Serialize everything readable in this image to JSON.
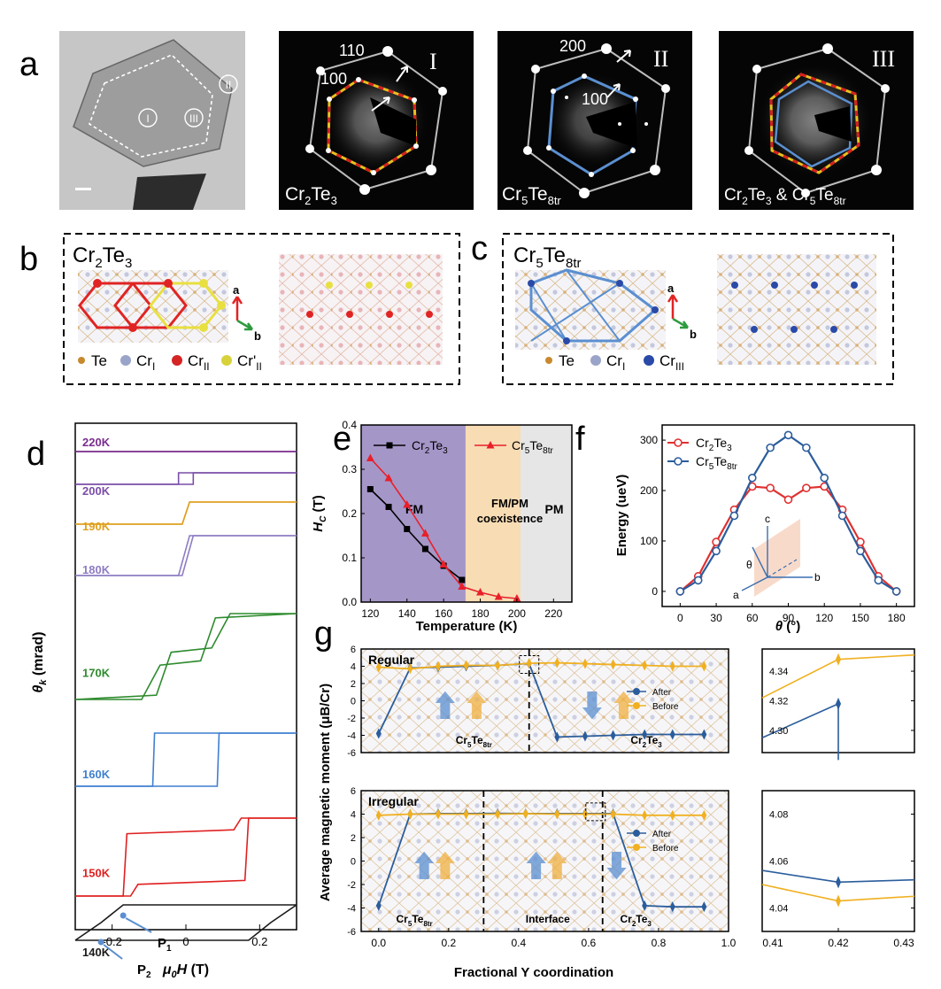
{
  "panels": {
    "a": "a",
    "b": "b",
    "c": "c",
    "d": "d",
    "e": "e",
    "f": "f",
    "g": "g"
  },
  "panel_a": {
    "regions": [
      "I",
      "II",
      "III"
    ],
    "images": [
      {
        "roman": "I",
        "formula_parts": [
          "Cr",
          "2",
          "Te",
          "3"
        ],
        "index_labels": [
          "110",
          "100"
        ]
      },
      {
        "roman": "II",
        "formula_parts": [
          "Cr",
          "5",
          "Te",
          "8tr"
        ],
        "index_labels": [
          "200",
          "100"
        ]
      },
      {
        "roman": "III",
        "formula_parts": [
          "Cr",
          "2",
          "Te",
          "3",
          " & Cr",
          "5",
          "Te",
          "8tr"
        ]
      }
    ],
    "colors": {
      "cr2te3_hex": "#e8c020",
      "cr2te3_dash": "#d42020",
      "cr5te8_hex": "#5b8fd0",
      "outer_hex": "#b9b9b9"
    }
  },
  "panel_b": {
    "title_parts": [
      "Cr",
      "2",
      "Te",
      "3"
    ],
    "axes": {
      "a": "a",
      "b": "b"
    },
    "legend": [
      {
        "text": "Te",
        "color": "#c8892e"
      },
      {
        "text": "Cr",
        "sub": "I",
        "color": "#9aa4c8"
      },
      {
        "text": "Cr",
        "sub": "II",
        "color": "#d42424"
      },
      {
        "text": "Cr'",
        "sub": "II",
        "color": "#d7d23a"
      }
    ]
  },
  "panel_c": {
    "title_parts": [
      "Cr",
      "5",
      "Te",
      "8tr"
    ],
    "axes": {
      "a": "a",
      "b": "b"
    },
    "legend": [
      {
        "text": "Te",
        "color": "#c8892e"
      },
      {
        "text": "Cr",
        "sub": "I",
        "color": "#9aa4c8"
      },
      {
        "text": "Cr",
        "sub": "III",
        "color": "#2a4aa8"
      }
    ]
  },
  "chart_data": [
    {
      "panel": "d",
      "type": "line",
      "xlabel": "μ0H (T)",
      "ylabel": "θk (mrad)",
      "xlim": [
        -0.3,
        0.3
      ],
      "xticks": [
        "-0.2",
        "0",
        "0.2"
      ],
      "curves": [
        {
          "name": "220K",
          "color": "#7b2d8e",
          "x": [
            -0.3,
            0.3
          ],
          "y": [
            0,
            0
          ]
        },
        {
          "name": "200K",
          "color": "#7b4ea8",
          "x": [
            -0.3,
            -0.02,
            -0.02,
            0.3
          ],
          "y": [
            0,
            0,
            1,
            1
          ]
        },
        {
          "name": "190K",
          "color": "#e0a020",
          "x": [
            -0.3,
            -0.01,
            0.01,
            0.3
          ],
          "y": [
            0,
            0,
            1,
            1
          ]
        },
        {
          "name": "180K",
          "color": "#8e7cc3",
          "x": [
            -0.3,
            -0.01,
            0.02,
            0.3
          ],
          "y": [
            0,
            0,
            1,
            1
          ]
        },
        {
          "name": "170K",
          "color": "#2e8b2e",
          "x": [
            -0.3,
            -0.08,
            -0.04,
            0.07,
            0.12,
            0.3
          ],
          "y": [
            0,
            0.05,
            0.55,
            0.6,
            1,
            1
          ]
        },
        {
          "name": "160K",
          "color": "#3f7fd0",
          "x": [
            -0.3,
            -0.09,
            -0.085,
            0.07,
            0.08,
            0.3
          ],
          "y": [
            0,
            0,
            1,
            1,
            1,
            1
          ]
        },
        {
          "name": "150K",
          "color": "#e02020",
          "x": [
            -0.3,
            -0.17,
            -0.16,
            0.13,
            0.15,
            0.3
          ],
          "y": [
            0,
            0,
            0.8,
            0.85,
            1,
            1
          ]
        },
        {
          "name": "140K",
          "color": "#1a1a1a",
          "x": [
            -0.3,
            -0.23,
            -0.17,
            0.17,
            0.24,
            0.3
          ],
          "y": [
            0,
            0.5,
            1,
            1,
            1,
            1
          ]
        }
      ],
      "annotations": [
        {
          "text": "P",
          "sub": "1",
          "x": -0.17
        },
        {
          "text": "P",
          "sub": "2",
          "x": -0.23
        }
      ]
    },
    {
      "panel": "e",
      "type": "line",
      "xlabel": "Temperature (K)",
      "ylabel_parts": [
        "H",
        "C",
        " (T)"
      ],
      "xlim": [
        115,
        230
      ],
      "ylim": [
        0,
        0.4
      ],
      "xticks": [
        120,
        140,
        160,
        180,
        200,
        220
      ],
      "yticks": [
        "0.0",
        "0.1",
        "0.2",
        "0.3",
        "0.4"
      ],
      "regions": [
        {
          "label": "FM",
          "from": 115,
          "to": 172,
          "color": "#a596c8"
        },
        {
          "label": "FM/PM coexistence",
          "from": 172,
          "to": 202,
          "color": "#f8dcb4"
        },
        {
          "label": "PM",
          "from": 202,
          "to": 230,
          "color": "#e6e6e6"
        }
      ],
      "series": [
        {
          "name_parts": [
            "Cr",
            "2",
            "Te",
            "3"
          ],
          "color": "#000000",
          "marker": "square",
          "x": [
            120,
            130,
            140,
            150,
            160,
            170
          ],
          "y": [
            0.255,
            0.215,
            0.165,
            0.12,
            0.082,
            0.05
          ]
        },
        {
          "name_parts": [
            "Cr",
            "5",
            "Te",
            "8tr"
          ],
          "color": "#e8202a",
          "marker": "triangle",
          "x": [
            120,
            130,
            140,
            150,
            160,
            170,
            180,
            190,
            200
          ],
          "y": [
            0.325,
            0.28,
            0.22,
            0.155,
            0.085,
            0.035,
            0.022,
            0.012,
            0.008
          ]
        }
      ]
    },
    {
      "panel": "f",
      "type": "line",
      "xlabel": "θ (°)",
      "ylabel": "Energy (ueV)",
      "xlim": [
        -15,
        195
      ],
      "ylim": [
        -30,
        330
      ],
      "xticks": [
        0,
        30,
        60,
        90,
        120,
        150,
        180
      ],
      "yticks": [
        0,
        100,
        200,
        300
      ],
      "inset_labels": [
        "c",
        "b",
        "a",
        "θ"
      ],
      "series": [
        {
          "name_parts": [
            "Cr",
            "2",
            "Te",
            "3"
          ],
          "color": "#e03030",
          "x": [
            0,
            15,
            30,
            45,
            60,
            75,
            90,
            105,
            120,
            135,
            150,
            165,
            180
          ],
          "y": [
            0,
            30,
            98,
            162,
            208,
            205,
            182,
            205,
            208,
            162,
            98,
            30,
            0
          ]
        },
        {
          "name_parts": [
            "Cr",
            "5",
            "Te",
            "8tr"
          ],
          "color": "#2b5d9c",
          "x": [
            0,
            15,
            30,
            45,
            60,
            75,
            90,
            105,
            120,
            135,
            150,
            165,
            180
          ],
          "y": [
            0,
            22,
            80,
            150,
            225,
            285,
            310,
            285,
            225,
            150,
            80,
            22,
            0
          ]
        }
      ]
    },
    {
      "panel": "g",
      "type": "line",
      "xlabel": "Fractional Y coordination",
      "ylabel": "Average magnetic moment (μB/Cr)",
      "xlim": [
        -0.05,
        1.0
      ],
      "xticks": [
        "0.0",
        "0.2",
        "0.4",
        "0.6",
        "0.8",
        "1.0"
      ],
      "ylim": [
        -6,
        6
      ],
      "yticks": [
        -6,
        -4,
        -2,
        0,
        2,
        4,
        6
      ],
      "subpanels": [
        {
          "tag": "Regular",
          "regions": [
            {
              "parts": [
                "Cr",
                "5",
                "Te",
                "8tr"
              ],
              "x": 0.22
            },
            {
              "parts": [
                "Cr",
                "2",
                "Te",
                "3"
              ],
              "x": 0.72
            }
          ],
          "dividers": [
            0.43
          ],
          "series": [
            {
              "name": "After",
              "color": "#2b5d9c",
              "x": [
                0.0,
                0.09,
                0.17,
                0.25,
                0.34,
                0.43,
                0.51,
                0.59,
                0.67,
                0.76,
                0.84,
                0.93
              ],
              "y": [
                -3.8,
                3.8,
                3.9,
                4.0,
                4.1,
                4.32,
                -4.2,
                -4.1,
                -4.0,
                -3.9,
                -3.9,
                -3.9
              ]
            },
            {
              "name": "Before",
              "color": "#f0b020",
              "x": [
                0.0,
                0.09,
                0.17,
                0.25,
                0.34,
                0.43,
                0.51,
                0.59,
                0.67,
                0.76,
                0.84,
                0.93
              ],
              "y": [
                3.9,
                3.7,
                4.0,
                4.1,
                4.1,
                4.35,
                4.4,
                4.3,
                4.2,
                4.1,
                4.0,
                4.0
              ]
            }
          ]
        },
        {
          "tag": "Irregular",
          "regions": [
            {
              "parts": [
                "Cr",
                "5",
                "Te",
                "8tr"
              ],
              "x": 0.05
            },
            {
              "parts": [
                "Interface"
              ],
              "x": 0.42
            },
            {
              "parts": [
                "Cr",
                "2",
                "Te",
                "3"
              ],
              "x": 0.69
            }
          ],
          "dividers": [
            0.3,
            0.64
          ],
          "series": [
            {
              "name": "After",
              "color": "#2b5d9c",
              "x": [
                0.0,
                0.09,
                0.17,
                0.25,
                0.34,
                0.42,
                0.51,
                0.59,
                0.67,
                0.76,
                0.84,
                0.93
              ],
              "y": [
                -3.8,
                4.0,
                4.05,
                4.05,
                4.06,
                4.05,
                4.05,
                4.05,
                4.05,
                -3.8,
                -3.9,
                -3.9
              ]
            },
            {
              "name": "Before",
              "color": "#f0b020",
              "x": [
                0.0,
                0.09,
                0.17,
                0.25,
                0.34,
                0.42,
                0.51,
                0.59,
                0.67,
                0.76,
                0.84,
                0.93
              ],
              "y": [
                3.9,
                4.0,
                4.0,
                4.0,
                4.0,
                4.04,
                4.0,
                4.0,
                4.0,
                3.9,
                3.9,
                3.9
              ]
            }
          ]
        }
      ],
      "zoom_panels": [
        {
          "xticks": [
            "0.41",
            "0.42",
            "0.43"
          ],
          "yticks": [
            "4.30",
            "4.32",
            "4.34"
          ],
          "ylim": [
            4.285,
            4.355
          ],
          "after": {
            "x": [
              0.41,
              0.42,
              0.42
            ],
            "y": [
              4.295,
              4.318,
              4.28
            ]
          },
          "before": {
            "x": [
              0.41,
              0.42,
              0.43
            ],
            "y": [
              4.322,
              4.348,
              4.351
            ]
          }
        },
        {
          "xticks": [
            "0.41",
            "0.42",
            "0.43"
          ],
          "yticks": [
            "4.04",
            "4.06",
            "4.08"
          ],
          "ylim": [
            4.03,
            4.09
          ],
          "after": {
            "x": [
              0.41,
              0.42,
              0.43
            ],
            "y": [
              4.056,
              4.051,
              4.052
            ]
          },
          "before": {
            "x": [
              0.41,
              0.42,
              0.43
            ],
            "y": [
              4.05,
              4.043,
              4.045
            ]
          }
        }
      ]
    }
  ]
}
